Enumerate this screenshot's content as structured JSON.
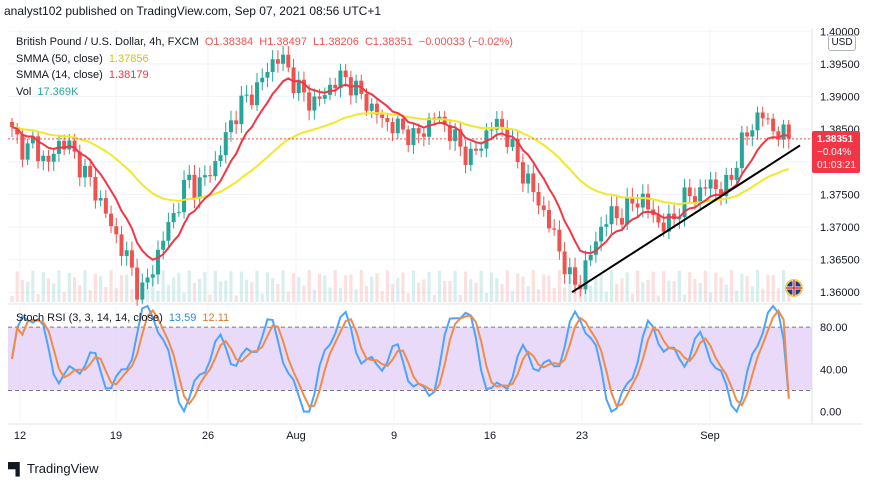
{
  "header": {
    "publisher_line": "analyst102 published on TradingView.com, Sep 07, 2021 08:56 UTC+1"
  },
  "legend": {
    "symbol": "British Pound / U.S. Dollar, 4h, FXCM",
    "open": "O1.38384",
    "high": "H1.38497",
    "low": "L1.38206",
    "close": "C1.38351",
    "change": "−0.00033 (−0.02%)",
    "sma50_label": "SMMA (50, close)",
    "sma50_value": "1.37856",
    "sma14_label": "SMMA (14, close)",
    "sma14_value": "1.38179",
    "vol_label": "Vol",
    "vol_value": "17.369K",
    "stoch_label": "Stoch RSI (3, 3, 14, 14, close)",
    "stoch_k": "13.59",
    "stoch_d": "12.11"
  },
  "price_tag": {
    "price": "1.38351",
    "change": "−0.04%",
    "countdown": "01:03:21"
  },
  "currency_button": "USD",
  "brand": {
    "name": "TradingView"
  },
  "colors": {
    "up": "#26a69a",
    "down": "#ef5350",
    "sma50": "#f2e82b",
    "sma14": "#f23645",
    "stoch_k": "#4ea3ff",
    "stoch_d": "#f08c4a",
    "rsi_band": "#e4d3f7"
  },
  "chart_data": [
    {
      "type": "candlestick",
      "title": "British Pound / U.S. Dollar, 4h, FXCM",
      "y_ticks": [
        "1.36000",
        "1.36500",
        "1.37000",
        "1.37500",
        "1.38000",
        "1.38500",
        "1.39000",
        "1.39500",
        "1.40000"
      ],
      "ylim": [
        1.3585,
        1.4005
      ],
      "x_ticks": [
        "12",
        "19",
        "26",
        "Aug",
        "9",
        "16",
        "23",
        "Sep"
      ],
      "series": [
        {
          "name": "SMMA (50, close)",
          "last": 1.37856
        },
        {
          "name": "SMMA (14, close)",
          "last": 1.38179
        }
      ],
      "close_path": [
        1.3845,
        1.383,
        1.3815,
        1.383,
        1.381,
        1.3795,
        1.3815,
        1.3835,
        1.3825,
        1.3805,
        1.379,
        1.377,
        1.375,
        1.373,
        1.37,
        1.368,
        1.366,
        1.363,
        1.36,
        1.361,
        1.364,
        1.367,
        1.37,
        1.372,
        1.375,
        1.3775,
        1.376,
        1.377,
        1.3785,
        1.38,
        1.383,
        1.386,
        1.388,
        1.3895,
        1.3905,
        1.3915,
        1.394,
        1.3955,
        1.396,
        1.3945,
        1.392,
        1.3905,
        1.3895,
        1.389,
        1.39,
        1.3915,
        1.3925,
        1.393,
        1.392,
        1.3905,
        1.3895,
        1.388,
        1.387,
        1.386,
        1.3855,
        1.385,
        1.3845,
        1.3835,
        1.3845,
        1.386,
        1.387,
        1.386,
        1.3845,
        1.383,
        1.3815,
        1.3805,
        1.382,
        1.384,
        1.3855,
        1.386,
        1.384,
        1.3815,
        1.379,
        1.377,
        1.375,
        1.373,
        1.3705,
        1.368,
        1.365,
        1.362,
        1.361,
        1.363,
        1.366,
        1.369,
        1.371,
        1.372,
        1.3715,
        1.3725,
        1.374,
        1.3745,
        1.373,
        1.3715,
        1.37,
        1.3705,
        1.372,
        1.374,
        1.375,
        1.3745,
        1.376,
        1.377,
        1.3755,
        1.376,
        1.378,
        1.382,
        1.384,
        1.386,
        1.3875,
        1.386,
        1.3848,
        1.384,
        1.38351
      ],
      "trendline": {
        "from": {
          "label": "23",
          "y": 1.36
        },
        "to": {
          "label": "Sep",
          "y": 1.3825
        }
      },
      "dotted_last_price": 1.38351
    },
    {
      "type": "line",
      "title": "Stoch RSI (3, 3, 14, 14, close)",
      "y_ticks": [
        "0.00",
        "40.00",
        "80.00"
      ],
      "ylim": [
        -8,
        100
      ],
      "band": [
        20,
        80
      ],
      "series": [
        {
          "name": "K",
          "last": 13.59
        },
        {
          "name": "D",
          "last": 12.11
        }
      ]
    }
  ]
}
